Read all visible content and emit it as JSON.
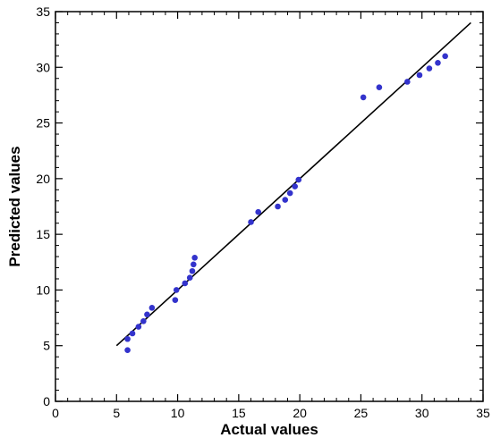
{
  "chart_data": {
    "type": "scatter",
    "title": "",
    "xlabel": "Actual values",
    "ylabel": "Predicted values",
    "xlim": [
      0,
      35
    ],
    "ylim": [
      0,
      35
    ],
    "xticks": [
      0,
      5,
      10,
      15,
      20,
      25,
      30,
      35
    ],
    "yticks": [
      0,
      5,
      10,
      15,
      20,
      25,
      30,
      35
    ],
    "minor_tick_step": 1,
    "grid": false,
    "legend": "none",
    "point_color": "#3333cc",
    "line_color": "#000000",
    "series": [
      {
        "type": "scatter",
        "x": [
          5.9,
          5.9,
          6.3,
          6.8,
          7.2,
          7.5,
          7.9,
          9.8,
          9.9,
          10.6,
          11.0,
          11.2,
          11.3,
          11.4,
          16.0,
          16.6,
          18.2,
          18.8,
          19.2,
          19.6,
          19.9,
          25.2,
          26.5,
          28.8,
          29.8,
          30.6,
          31.3,
          31.9
        ],
        "y": [
          4.6,
          5.6,
          6.1,
          6.7,
          7.2,
          7.8,
          8.4,
          9.1,
          10.0,
          10.6,
          11.1,
          11.7,
          12.3,
          12.9,
          16.1,
          17.0,
          17.5,
          18.1,
          18.7,
          19.3,
          19.9,
          27.3,
          28.2,
          28.7,
          29.3,
          29.9,
          30.4,
          31.0
        ]
      },
      {
        "type": "line",
        "x": [
          5.0,
          34.0
        ],
        "y": [
          5.0,
          34.0
        ]
      }
    ]
  }
}
